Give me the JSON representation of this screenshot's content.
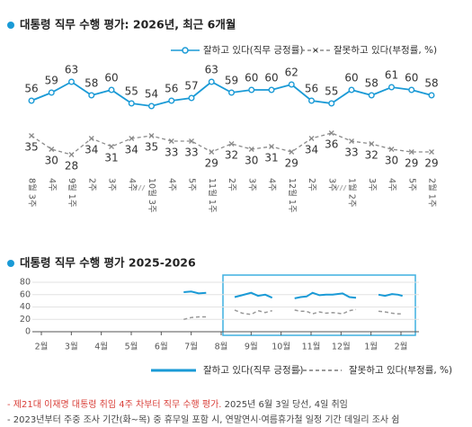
{
  "chart_data": [
    {
      "type": "line",
      "title": "대통령 직무 수행 평가: 2026년, 최근 6개월",
      "categories": [
        "8월 3주",
        "4주",
        "9월 1주",
        "2주",
        "3주",
        "4주",
        "10월 3주",
        "4주",
        "5주",
        "11월 1주",
        "2주",
        "3주",
        "4주",
        "12월 1주",
        "2주",
        "3주",
        "1월 2주",
        "3주",
        "4주",
        "5주",
        "2월 1주"
      ],
      "ylim": [
        30,
        70
      ],
      "y2lim": [
        22,
        62
      ],
      "series": [
        {
          "name": "잘하고 있다(직무 긍정률)",
          "color": "#1a9ad6",
          "values": [
            56,
            59,
            63,
            58,
            60,
            55,
            54,
            56,
            57,
            63,
            59,
            60,
            60,
            62,
            56,
            55,
            60,
            58,
            61,
            60,
            58
          ]
        },
        {
          "name": "잘못하고 있다(부정률, %)",
          "color": "#8a8a8a",
          "axis": "y2",
          "values": [
            35,
            30,
            28,
            34,
            31,
            34,
            35,
            33,
            33,
            29,
            32,
            30,
            31,
            29,
            34,
            36,
            33,
            32,
            30,
            29,
            29
          ]
        }
      ]
    },
    {
      "type": "line",
      "title": "대통령 직무 수행 평가 2025-2026",
      "x": [
        4.75,
        5.0,
        5.25,
        5.5,
        null,
        6.45,
        6.7,
        7.0,
        7.23,
        7.47,
        7.7,
        null,
        8.45,
        8.65,
        8.85,
        9.05,
        9.28,
        9.5,
        9.72,
        10.05,
        10.28,
        10.5,
        null,
        11.25,
        11.47,
        11.7,
        11.9,
        12.05
      ],
      "xlim": [
        -0.3,
        12.6
      ],
      "xticks": [
        {
          "value": 0,
          "label": "2월"
        },
        {
          "value": 1,
          "label": "3월"
        },
        {
          "value": 2,
          "label": "4월"
        },
        {
          "value": 3,
          "label": "5월"
        },
        {
          "value": 4,
          "label": "6월"
        },
        {
          "value": 5,
          "label": "7월"
        },
        {
          "value": 6,
          "label": "8월"
        },
        {
          "value": 7,
          "label": "9월"
        },
        {
          "value": 8,
          "label": "10월"
        },
        {
          "value": 9,
          "label": "11월"
        },
        {
          "value": 10,
          "label": "12월"
        },
        {
          "value": 11,
          "label": "1월"
        },
        {
          "value": 12,
          "label": "2월"
        }
      ],
      "ylim": [
        0,
        80
      ],
      "yticks": [
        0,
        20,
        40,
        60,
        80
      ],
      "grid": true,
      "series": [
        {
          "name": "잘하고 있다(직무 긍정률)",
          "color": "#1a9ad6",
          "values": [
            64,
            65,
            62,
            63,
            null,
            56,
            59,
            63,
            58,
            60,
            55,
            null,
            54,
            56,
            57,
            63,
            59,
            60,
            60,
            62,
            56,
            55,
            null,
            60,
            58,
            61,
            60,
            58
          ]
        },
        {
          "name": "잘못하고 있다(부정률, %)",
          "color": "#8a8a8a",
          "values": [
            20,
            23,
            24,
            24,
            null,
            35,
            30,
            28,
            34,
            31,
            34,
            null,
            35,
            33,
            33,
            29,
            32,
            30,
            31,
            29,
            34,
            36,
            null,
            33,
            32,
            30,
            29,
            29
          ]
        }
      ]
    }
  ],
  "notes": [
    {
      "highlight": "- 제21대 이재명 대통령 취임 4주 차부터 직무 수행 평가.",
      "text": " 2025년 6월 3일 당선, 4일 취임"
    },
    {
      "highlight": "",
      "text": "- 2023년부터 주중 조사 기간(화~목) 중 휴무일 포함 시, 연말연시·여름휴가철 일정 기간 데일리 조사 쉼"
    }
  ]
}
